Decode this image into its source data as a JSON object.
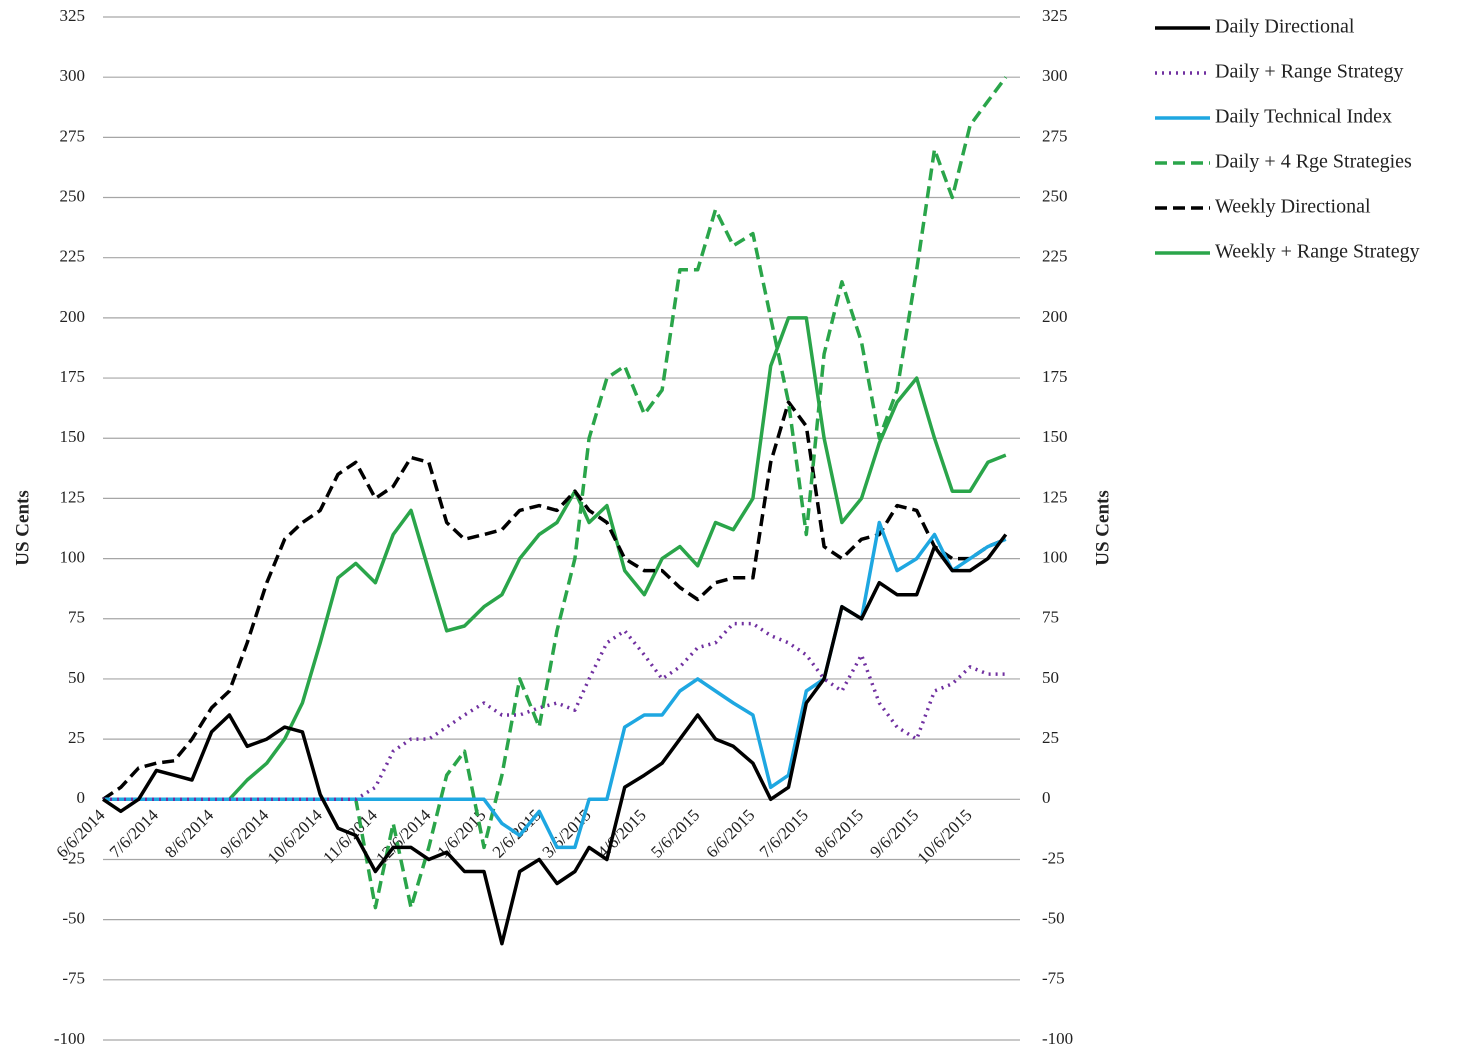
{
  "chart_data": {
    "type": "line",
    "y_axis_label": "US Cents",
    "y2_axis_label": "US Cents",
    "x": [
      "6/6/2014",
      "6/16/2014",
      "6/26/2014",
      "7/6/2014",
      "7/16/2014",
      "7/26/2014",
      "8/6/2014",
      "8/16/2014",
      "8/26/2014",
      "9/6/2014",
      "9/16/2014",
      "9/26/2014",
      "10/6/2014",
      "10/16/2014",
      "10/26/2014",
      "11/6/2014",
      "11/16/2014",
      "11/26/2014",
      "12/6/2014",
      "12/16/2014",
      "12/26/2014",
      "1/6/2015",
      "1/16/2015",
      "1/26/2015",
      "2/6/2015",
      "2/16/2015",
      "2/26/2015",
      "3/6/2015",
      "3/16/2015",
      "3/26/2015",
      "4/6/2015",
      "4/16/2015",
      "4/26/2015",
      "5/6/2015",
      "5/16/2015",
      "5/26/2015",
      "6/6/2015",
      "6/16/2015",
      "6/26/2015",
      "7/6/2015",
      "7/16/2015",
      "7/26/2015",
      "8/6/2015",
      "8/16/2015",
      "8/26/2015",
      "9/6/2015",
      "9/16/2015",
      "9/26/2015",
      "10/6/2015",
      "10/16/2015",
      "10/26/2015"
    ],
    "xlim": [
      "6/6/2014",
      "11/3/2015"
    ],
    "xticks": [
      "6/6/2014",
      "7/6/2014",
      "8/6/2014",
      "9/6/2014",
      "10/6/2014",
      "11/6/2014",
      "12/6/2014",
      "1/6/2015",
      "2/6/2015",
      "3/6/2015",
      "4/6/2015",
      "5/6/2015",
      "6/6/2015",
      "7/6/2015",
      "8/6/2015",
      "9/6/2015",
      "10/6/2015"
    ],
    "ylim": [
      -100,
      325
    ],
    "yticks": [
      -100,
      -75,
      -50,
      -25,
      0,
      25,
      50,
      75,
      100,
      125,
      150,
      175,
      200,
      225,
      250,
      275,
      300,
      325
    ],
    "y2lim": [
      -100,
      325
    ],
    "y2ticks": [
      -100,
      -75,
      -50,
      -25,
      0,
      25,
      50,
      75,
      100,
      125,
      150,
      175,
      200,
      225,
      250,
      275,
      300,
      325
    ],
    "grid": true,
    "legend": "right",
    "series": [
      {
        "name": "Daily Directional",
        "color": "#000000",
        "dash": "solid",
        "values": [
          0,
          -5,
          0,
          12,
          10,
          8,
          28,
          35,
          22,
          25,
          30,
          28,
          2,
          -12,
          -15,
          -30,
          -20,
          -20,
          -25,
          -22,
          -30,
          -30,
          -60,
          -30,
          -25,
          -35,
          -30,
          -20,
          -25,
          5,
          10,
          15,
          25,
          35,
          25,
          22,
          15,
          0,
          5,
          40,
          50,
          80,
          75,
          90,
          85,
          85,
          105,
          95,
          95,
          100,
          110
        ]
      },
      {
        "name": "Daily + Range Strategy",
        "color": "#7030a0",
        "dash": "dotted",
        "values": [
          0,
          0,
          0,
          0,
          0,
          0,
          0,
          0,
          0,
          0,
          0,
          0,
          0,
          0,
          0,
          5,
          20,
          25,
          25,
          30,
          35,
          40,
          35,
          35,
          38,
          40,
          37,
          50,
          65,
          70,
          60,
          50,
          55,
          63,
          65,
          73,
          73,
          68,
          65,
          60,
          50,
          45,
          60,
          40,
          30,
          25,
          45,
          48,
          55,
          52,
          52
        ]
      },
      {
        "name": "Daily Technical Index",
        "color": "#1ea7e1",
        "dash": "solid",
        "values": [
          0,
          0,
          0,
          0,
          0,
          0,
          0,
          0,
          0,
          0,
          0,
          0,
          0,
          0,
          0,
          0,
          0,
          0,
          0,
          0,
          0,
          0,
          -10,
          -15,
          -5,
          -20,
          -20,
          0,
          0,
          30,
          35,
          35,
          45,
          50,
          45,
          40,
          35,
          5,
          10,
          45,
          50,
          80,
          75,
          115,
          95,
          100,
          110,
          95,
          100,
          105,
          108
        ]
      },
      {
        "name": "Daily + 4 Rge Strategies",
        "color": "#2aa54a",
        "dash": "dashed",
        "values": [
          0,
          0,
          0,
          0,
          0,
          0,
          0,
          0,
          0,
          0,
          0,
          0,
          0,
          0,
          0,
          -45,
          -10,
          -45,
          -20,
          10,
          20,
          -20,
          10,
          50,
          30,
          70,
          100,
          150,
          175,
          180,
          160,
          170,
          220,
          220,
          245,
          230,
          235,
          200,
          165,
          110,
          185,
          215,
          190,
          150,
          170,
          220,
          270,
          250,
          280,
          290,
          300
        ]
      },
      {
        "name": "Weekly Directional",
        "color": "#000000",
        "dash": "dashed",
        "values": [
          0,
          5,
          13,
          15,
          16,
          25,
          38,
          45,
          65,
          90,
          108,
          115,
          120,
          135,
          140,
          125,
          130,
          142,
          140,
          115,
          108,
          110,
          112,
          120,
          122,
          120,
          128,
          120,
          115,
          100,
          95,
          95,
          88,
          83,
          90,
          92,
          92,
          140,
          165,
          155,
          105,
          100,
          108,
          110,
          122,
          120,
          105,
          100,
          100,
          105,
          108
        ]
      },
      {
        "name": "Weekly + Range Strategy",
        "color": "#2aa54a",
        "dash": "solid",
        "values": [
          0,
          0,
          0,
          0,
          0,
          0,
          0,
          0,
          8,
          15,
          25,
          40,
          65,
          92,
          98,
          90,
          110,
          120,
          95,
          70,
          72,
          80,
          85,
          100,
          110,
          115,
          128,
          115,
          122,
          95,
          85,
          100,
          105,
          97,
          115,
          112,
          125,
          180,
          200,
          200,
          150,
          115,
          125,
          148,
          165,
          175,
          150,
          128,
          128,
          140,
          143
        ]
      }
    ]
  }
}
